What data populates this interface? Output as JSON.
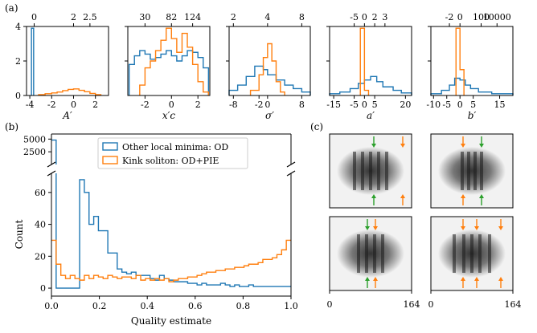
{
  "figure": {
    "panel_labels": [
      "(a)",
      "(b)",
      "(c)"
    ],
    "colors": {
      "blue": "#1f77b4",
      "orange": "#ff7f0e",
      "green": "#2ca02c",
      "gray_bg": "#f2f2f2"
    }
  },
  "chart_data": [
    {
      "type": "histogram",
      "panel": "(a)",
      "xlabel": "A′",
      "xlim": [
        -4.3,
        3.2
      ],
      "ylim": [
        0,
        4
      ],
      "bottom_ticks": [
        "-4",
        "-2",
        "0",
        "2"
      ],
      "bottom_tick_values": [
        -4,
        -2,
        0,
        2
      ],
      "top_ticks": [
        "0",
        "2",
        "2.5"
      ],
      "top_tick_values": [
        -3.6,
        0,
        1.5
      ],
      "y_ticks": [
        "0",
        "2",
        "4"
      ],
      "y_tick_values": [
        0,
        2,
        4
      ],
      "series": [
        {
          "color": "blue",
          "bins": [
            [
              -3.85,
              -3.65,
              3.9
            ]
          ]
        },
        {
          "color": "orange",
          "bins": [
            [
              -3.2,
              -2.6,
              0.05
            ],
            [
              -2.6,
              -2.0,
              0.1
            ],
            [
              -2.0,
              -1.5,
              0.15
            ],
            [
              -1.5,
              -1.0,
              0.2
            ],
            [
              -1.0,
              -0.5,
              0.28
            ],
            [
              -0.5,
              0.0,
              0.35
            ],
            [
              0.0,
              0.5,
              0.38
            ],
            [
              0.5,
              1.0,
              0.3
            ],
            [
              1.0,
              1.5,
              0.22
            ],
            [
              1.5,
              2.0,
              0.12
            ],
            [
              2.0,
              2.5,
              0.05
            ]
          ]
        }
      ]
    },
    {
      "type": "histogram",
      "panel": "(a)",
      "xlabel": "x′c",
      "xlim": [
        -3.3,
        2.9
      ],
      "ylim": [
        0,
        4
      ],
      "bottom_ticks": [
        "-2",
        "0",
        "2"
      ],
      "bottom_tick_values": [
        -2,
        0,
        2
      ],
      "top_ticks": [
        "30",
        "82",
        "124"
      ],
      "top_tick_values": [
        -2,
        0,
        1.6
      ],
      "series": [
        {
          "color": "blue",
          "bins": [
            [
              -3.2,
              -2.8,
              1.8
            ],
            [
              -2.8,
              -2.4,
              2.3
            ],
            [
              -2.4,
              -2.0,
              2.6
            ],
            [
              -2.0,
              -1.6,
              2.4
            ],
            [
              -1.6,
              -1.2,
              2.1
            ],
            [
              -1.2,
              -0.8,
              2.2
            ],
            [
              -0.8,
              -0.4,
              2.4
            ],
            [
              -0.4,
              0.0,
              2.6
            ],
            [
              0.0,
              0.4,
              2.3
            ],
            [
              0.4,
              0.8,
              2.0
            ],
            [
              0.8,
              1.2,
              2.3
            ],
            [
              1.2,
              1.6,
              2.6
            ],
            [
              1.6,
              2.0,
              2.5
            ],
            [
              2.0,
              2.4,
              2.2
            ],
            [
              2.4,
              2.8,
              1.6
            ]
          ]
        },
        {
          "color": "orange",
          "bins": [
            [
              -2.4,
              -2.0,
              0.6
            ],
            [
              -2.0,
              -1.6,
              1.6
            ],
            [
              -1.6,
              -1.2,
              2.0
            ],
            [
              -1.2,
              -0.8,
              2.6
            ],
            [
              -0.8,
              -0.4,
              3.2
            ],
            [
              -0.4,
              0.0,
              3.9
            ],
            [
              0.0,
              0.4,
              3.3
            ],
            [
              0.4,
              0.8,
              2.5
            ],
            [
              0.8,
              1.2,
              3.6
            ],
            [
              1.2,
              1.6,
              2.8
            ],
            [
              1.6,
              2.0,
              1.8
            ],
            [
              2.0,
              2.4,
              0.8
            ],
            [
              2.4,
              2.8,
              0.2
            ]
          ]
        }
      ]
    },
    {
      "type": "histogram",
      "panel": "(a)",
      "xlabel": "σ′",
      "xlim": [
        -9,
        10
      ],
      "ylim": [
        0,
        4
      ],
      "bottom_ticks": [
        "-8",
        "-2",
        "0",
        "8"
      ],
      "bottom_tick_values": [
        -8,
        -2,
        0,
        8
      ],
      "top_ticks": [
        "2",
        "4",
        "8"
      ],
      "top_tick_values": [
        -8,
        0,
        8
      ],
      "series": [
        {
          "color": "blue",
          "bins": [
            [
              -9,
              -7,
              0.3
            ],
            [
              -7,
              -5,
              0.6
            ],
            [
              -5,
              -3,
              1.1
            ],
            [
              -3,
              -1,
              1.7
            ],
            [
              -1,
              0,
              1.5
            ],
            [
              0,
              2,
              1.2
            ],
            [
              2,
              4,
              0.9
            ],
            [
              4,
              6,
              0.6
            ],
            [
              6,
              8,
              0.4
            ],
            [
              8,
              10,
              0.2
            ]
          ]
        },
        {
          "color": "orange",
          "bins": [
            [
              -4,
              -2,
              0.3
            ],
            [
              -2,
              -1,
              1.2
            ],
            [
              -1,
              0,
              2.2
            ],
            [
              0,
              1,
              3.0
            ],
            [
              1,
              2,
              2.0
            ],
            [
              2,
              3,
              0.8
            ],
            [
              3,
              4,
              0.2
            ]
          ]
        }
      ]
    },
    {
      "type": "histogram",
      "panel": "(a)",
      "xlabel": "a′",
      "xlim": [
        -17,
        23
      ],
      "ylim": [
        0,
        4
      ],
      "bottom_ticks": [
        "-15",
        "-5",
        "0",
        "5",
        "20"
      ],
      "bottom_tick_values": [
        -15,
        -5,
        0,
        5,
        20
      ],
      "top_ticks": [
        "-5",
        "0",
        "2",
        "3"
      ],
      "top_tick_values": [
        -5,
        0,
        5,
        10
      ],
      "series": [
        {
          "color": "blue",
          "bins": [
            [
              -17,
              -12,
              0.1
            ],
            [
              -12,
              -7,
              0.2
            ],
            [
              -7,
              -3,
              0.4
            ],
            [
              -3,
              0,
              0.7
            ],
            [
              0,
              3,
              0.9
            ],
            [
              3,
              6,
              1.1
            ],
            [
              6,
              9,
              0.8
            ],
            [
              9,
              14,
              0.5
            ],
            [
              14,
              18,
              0.3
            ],
            [
              18,
              23,
              0.15
            ]
          ]
        },
        {
          "color": "orange",
          "bins": [
            [
              -2,
              0,
              3.9
            ],
            [
              0,
              2,
              0.3
            ]
          ]
        }
      ]
    },
    {
      "type": "histogram",
      "panel": "(a)",
      "xlabel": "b′",
      "xlim": [
        -11,
        20
      ],
      "ylim": [
        0,
        4
      ],
      "bottom_ticks": [
        "-10",
        "-5",
        "0",
        "5",
        "15"
      ],
      "bottom_tick_values": [
        -10,
        -5,
        0,
        5,
        15
      ],
      "top_ticks": [
        "-2",
        "0",
        "100",
        "10000"
      ],
      "top_tick_values": [
        -4,
        0,
        8,
        14
      ],
      "series": [
        {
          "color": "blue",
          "bins": [
            [
              -11,
              -7,
              0.1
            ],
            [
              -7,
              -4,
              0.3
            ],
            [
              -4,
              -2,
              0.6
            ],
            [
              -2,
              0,
              1.0
            ],
            [
              0,
              2,
              0.9
            ],
            [
              2,
              4,
              0.6
            ],
            [
              4,
              7,
              0.4
            ],
            [
              7,
              12,
              0.2
            ],
            [
              12,
              20,
              0.1
            ]
          ]
        },
        {
          "color": "orange",
          "bins": [
            [
              -1.5,
              0,
              3.9
            ],
            [
              0,
              1.5,
              1.5
            ]
          ]
        }
      ]
    },
    {
      "type": "histogram",
      "panel": "(b)",
      "xlabel": "Quality estimate",
      "ylabel": "Count",
      "x_ticks": [
        "0.0",
        "0.2",
        "0.4",
        "0.6",
        "0.8",
        "1.0"
      ],
      "y_ticks_lower": [
        "0",
        "20",
        "40",
        "60"
      ],
      "y_ticks_upper": [
        "2500",
        "5000"
      ],
      "legend": [
        "Other local minima: OD",
        "Kink soliton: OD+PIE"
      ],
      "series": [
        {
          "name": "Other local minima: OD",
          "color": "blue",
          "values": [
            4800,
            0,
            0,
            0,
            0,
            0,
            68,
            60,
            40,
            45,
            36,
            36,
            22,
            22,
            12,
            10,
            9,
            10,
            8,
            8,
            8,
            6,
            5,
            8,
            6,
            5,
            4,
            4,
            4,
            3,
            3,
            2,
            3,
            2,
            2,
            2,
            3,
            2,
            1,
            2,
            1,
            1,
            2,
            1,
            1,
            1,
            1,
            1,
            1,
            1,
            1
          ]
        },
        {
          "name": "Kink soliton: OD+PIE",
          "color": "orange",
          "values": [
            30,
            15,
            8,
            6,
            8,
            6,
            5,
            8,
            6,
            8,
            7,
            6,
            8,
            7,
            6,
            7,
            7,
            6,
            8,
            5,
            6,
            5,
            6,
            5,
            6,
            4,
            5,
            6,
            6,
            7,
            7,
            8,
            9,
            10,
            10,
            11,
            11,
            12,
            12,
            13,
            13,
            14,
            15,
            15,
            16,
            18,
            18,
            19,
            21,
            24,
            30
          ]
        }
      ]
    }
  ],
  "panel_c": {
    "axis_ticks": [
      "0",
      "164"
    ]
  }
}
